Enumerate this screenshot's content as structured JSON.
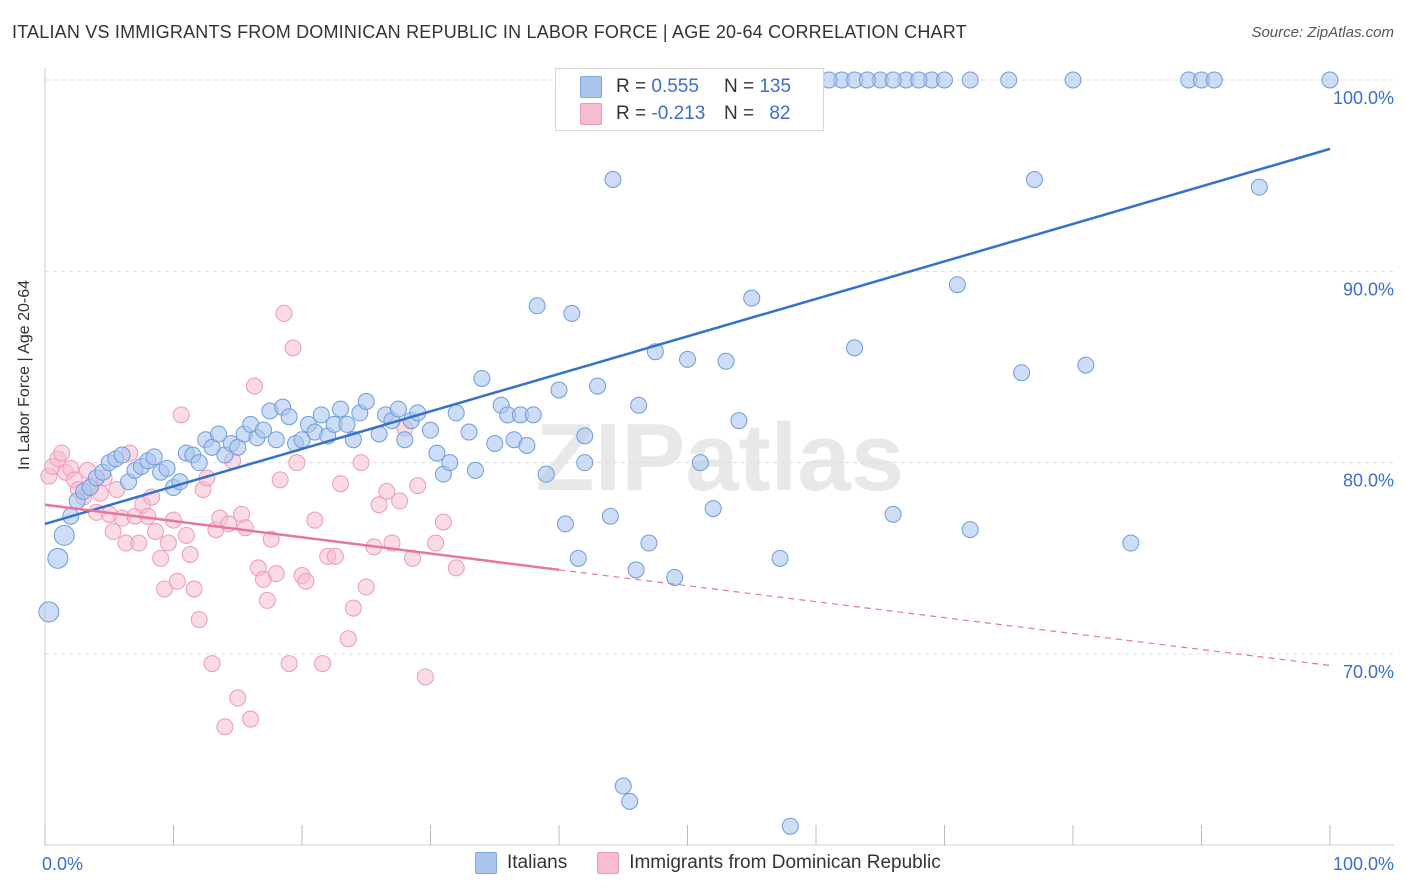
{
  "title": "ITALIAN VS IMMIGRANTS FROM DOMINICAN REPUBLIC IN LABOR FORCE | AGE 20-64 CORRELATION CHART",
  "source": "Source: ZipAtlas.com",
  "watermark": "ZIPatlas",
  "legend": {
    "rows": [
      {
        "r_label": "R =",
        "r_value": "0.555",
        "n_label": "N =",
        "n_value": "135",
        "color": "#9dbcea"
      },
      {
        "r_label": "R =",
        "r_value": "-0.213",
        "n_label": "N =",
        "n_value": "82",
        "color": "#f3a9c0"
      }
    ]
  },
  "bottom_legend": [
    {
      "label": "Italians",
      "color": "#9dbcea"
    },
    {
      "label": "Immigrants from Dominican Republic",
      "color": "#f3a9c0"
    }
  ],
  "colors": {
    "blue_line": "#3672cc",
    "pink_line": "#e7759c",
    "blue_fill": "#aac6ee",
    "pink_fill": "#f6bcd0",
    "tick_text": "#3a6ecf"
  },
  "chart_data": {
    "type": "scatter",
    "xlabel": "",
    "ylabel": "In Labor Force | Age 20-64",
    "x_tick_labels": [
      "0.0%",
      "100.0%"
    ],
    "y_tick_labels": [
      "70.0%",
      "80.0%",
      "90.0%",
      "100.0%"
    ],
    "xlim": [
      0,
      100
    ],
    "ylim": [
      60.5,
      101
    ],
    "grid": true,
    "series": [
      {
        "name": "Italians",
        "color": "#9dbcea",
        "trend": {
          "x": [
            0,
            100
          ],
          "y": [
            76.8,
            96.4
          ]
        },
        "points": [
          [
            0.3,
            72.2
          ],
          [
            1,
            75
          ],
          [
            1.5,
            76.2
          ],
          [
            2,
            77.2
          ],
          [
            2.5,
            78
          ],
          [
            3,
            78.5
          ],
          [
            3.5,
            78.7
          ],
          [
            4,
            79.2
          ],
          [
            4.5,
            79.5
          ],
          [
            5,
            80
          ],
          [
            5.5,
            80.2
          ],
          [
            6,
            80.4
          ],
          [
            6.5,
            79
          ],
          [
            7,
            79.6
          ],
          [
            7.5,
            79.8
          ],
          [
            8,
            80.1
          ],
          [
            8.5,
            80.3
          ],
          [
            9,
            79.5
          ],
          [
            9.5,
            79.7
          ],
          [
            10,
            78.7
          ],
          [
            10.5,
            79
          ],
          [
            11,
            80.5
          ],
          [
            11.5,
            80.4
          ],
          [
            12,
            80
          ],
          [
            12.5,
            81.2
          ],
          [
            13,
            80.8
          ],
          [
            13.5,
            81.5
          ],
          [
            14,
            80.4
          ],
          [
            14.5,
            81
          ],
          [
            15,
            80.8
          ],
          [
            15.5,
            81.5
          ],
          [
            16,
            82
          ],
          [
            16.5,
            81.3
          ],
          [
            17,
            81.7
          ],
          [
            17.5,
            82.7
          ],
          [
            18,
            81.2
          ],
          [
            18.5,
            82.9
          ],
          [
            19,
            82.4
          ],
          [
            19.5,
            81
          ],
          [
            20,
            81.2
          ],
          [
            20.5,
            82
          ],
          [
            21,
            81.6
          ],
          [
            21.5,
            82.5
          ],
          [
            22,
            81.4
          ],
          [
            22.5,
            82
          ],
          [
            23,
            82.8
          ],
          [
            23.5,
            82
          ],
          [
            24,
            81.2
          ],
          [
            24.5,
            82.6
          ],
          [
            25,
            83.2
          ],
          [
            26,
            81.5
          ],
          [
            26.5,
            82.5
          ],
          [
            27,
            82.2
          ],
          [
            27.5,
            82.8
          ],
          [
            28,
            81.2
          ],
          [
            28.5,
            82.2
          ],
          [
            29,
            82.6
          ],
          [
            30,
            81.7
          ],
          [
            30.5,
            80.5
          ],
          [
            31,
            79.4
          ],
          [
            31.5,
            80
          ],
          [
            32,
            82.6
          ],
          [
            33,
            81.6
          ],
          [
            33.5,
            79.6
          ],
          [
            34,
            84.4
          ],
          [
            35,
            81
          ],
          [
            35.5,
            83
          ],
          [
            36,
            82.5
          ],
          [
            36.5,
            81.2
          ],
          [
            37,
            82.5
          ],
          [
            37.5,
            80.9
          ],
          [
            38,
            82.5
          ],
          [
            38.3,
            88.2
          ],
          [
            39,
            79.4
          ],
          [
            40,
            83.8
          ],
          [
            40.5,
            76.8
          ],
          [
            41,
            87.8
          ],
          [
            41.5,
            75
          ],
          [
            42,
            80
          ],
          [
            42,
            81.4
          ],
          [
            43,
            84
          ],
          [
            44,
            77.2
          ],
          [
            44.2,
            94.8
          ],
          [
            45,
            63.1
          ],
          [
            45.5,
            62.3
          ],
          [
            46,
            74.4
          ],
          [
            46.2,
            83
          ],
          [
            47,
            75.8
          ],
          [
            47.5,
            85.8
          ],
          [
            49,
            74
          ],
          [
            50,
            85.4
          ],
          [
            51,
            80
          ],
          [
            52,
            77.6
          ],
          [
            53,
            85.3
          ],
          [
            54,
            82.2
          ],
          [
            55,
            88.6
          ],
          [
            57.2,
            75
          ],
          [
            58,
            61
          ],
          [
            60,
            100
          ],
          [
            62,
            100
          ],
          [
            63,
            86
          ],
          [
            65,
            100
          ],
          [
            66,
            77.3
          ],
          [
            67,
            100
          ],
          [
            69,
            100
          ],
          [
            71,
            89.3
          ],
          [
            72,
            76.5
          ],
          [
            75,
            100
          ],
          [
            76,
            84.7
          ],
          [
            77,
            94.8
          ],
          [
            80,
            100
          ],
          [
            81,
            85.1
          ],
          [
            84.5,
            75.8
          ],
          [
            89,
            100
          ],
          [
            90,
            100
          ],
          [
            91,
            100
          ],
          [
            94.5,
            94.4
          ],
          [
            100,
            100
          ],
          [
            48,
            100
          ],
          [
            50,
            100
          ],
          [
            52,
            100
          ],
          [
            53,
            100
          ],
          [
            54,
            100
          ],
          [
            55,
            100
          ],
          [
            56,
            100
          ],
          [
            57,
            100
          ],
          [
            58,
            100
          ],
          [
            59,
            100
          ],
          [
            61,
            100
          ],
          [
            63,
            100
          ],
          [
            64,
            100
          ],
          [
            66,
            100
          ],
          [
            68,
            100
          ],
          [
            70,
            100
          ],
          [
            72,
            100
          ]
        ]
      },
      {
        "name": "Immigrants from Dominican Republic",
        "color": "#f3a9c0",
        "trend": {
          "x": [
            0,
            40
          ],
          "y": [
            77.8,
            74.4
          ]
        },
        "trend_dashed": {
          "x": [
            40,
            100
          ],
          "y": [
            74.4,
            69.4
          ]
        },
        "points": [
          [
            0.3,
            79.3
          ],
          [
            0.6,
            79.8
          ],
          [
            1,
            80.2
          ],
          [
            1.3,
            80.5
          ],
          [
            1.6,
            79.5
          ],
          [
            2,
            79.7
          ],
          [
            2.3,
            79.1
          ],
          [
            2.6,
            78.6
          ],
          [
            3,
            78.2
          ],
          [
            3.3,
            79.6
          ],
          [
            3.6,
            78.8
          ],
          [
            4,
            77.4
          ],
          [
            4.3,
            78.4
          ],
          [
            4.6,
            79.2
          ],
          [
            5,
            77.3
          ],
          [
            5.3,
            76.4
          ],
          [
            5.6,
            78.6
          ],
          [
            6,
            77.1
          ],
          [
            6.3,
            75.8
          ],
          [
            6.6,
            80.5
          ],
          [
            7,
            77.2
          ],
          [
            7.3,
            75.8
          ],
          [
            7.6,
            77.8
          ],
          [
            8,
            77.2
          ],
          [
            8.3,
            78.2
          ],
          [
            8.6,
            76.4
          ],
          [
            9,
            75
          ],
          [
            9.3,
            73.4
          ],
          [
            9.6,
            75.8
          ],
          [
            10,
            77
          ],
          [
            10.3,
            73.8
          ],
          [
            10.6,
            82.5
          ],
          [
            11,
            76.2
          ],
          [
            11.3,
            75.2
          ],
          [
            11.6,
            73.4
          ],
          [
            12,
            71.8
          ],
          [
            12.3,
            78.6
          ],
          [
            12.6,
            79.2
          ],
          [
            13,
            69.5
          ],
          [
            13.3,
            76.5
          ],
          [
            13.6,
            77.1
          ],
          [
            14,
            66.2
          ],
          [
            14.3,
            76.8
          ],
          [
            14.6,
            80.1
          ],
          [
            15,
            67.7
          ],
          [
            15.3,
            77.3
          ],
          [
            15.6,
            76.6
          ],
          [
            16,
            66.6
          ],
          [
            16.3,
            84
          ],
          [
            16.6,
            74.5
          ],
          [
            17,
            73.9
          ],
          [
            17.3,
            72.8
          ],
          [
            17.6,
            76
          ],
          [
            18,
            74.2
          ],
          [
            18.3,
            79.1
          ],
          [
            18.6,
            87.8
          ],
          [
            19,
            69.5
          ],
          [
            19.3,
            86
          ],
          [
            19.6,
            80
          ],
          [
            20,
            74.1
          ],
          [
            20.3,
            73.8
          ],
          [
            21,
            77
          ],
          [
            21.6,
            69.5
          ],
          [
            22,
            75.1
          ],
          [
            22.6,
            75.1
          ],
          [
            23,
            78.9
          ],
          [
            23.6,
            70.8
          ],
          [
            24,
            72.4
          ],
          [
            24.6,
            80
          ],
          [
            25,
            73.5
          ],
          [
            25.6,
            75.6
          ],
          [
            26,
            77.8
          ],
          [
            26.6,
            78.5
          ],
          [
            27,
            75.8
          ],
          [
            27.6,
            78
          ],
          [
            28,
            81.8
          ],
          [
            28.6,
            75
          ],
          [
            29,
            78.8
          ],
          [
            29.6,
            68.8
          ],
          [
            30.4,
            75.8
          ],
          [
            31,
            76.9
          ],
          [
            32,
            74.5
          ]
        ]
      }
    ]
  }
}
